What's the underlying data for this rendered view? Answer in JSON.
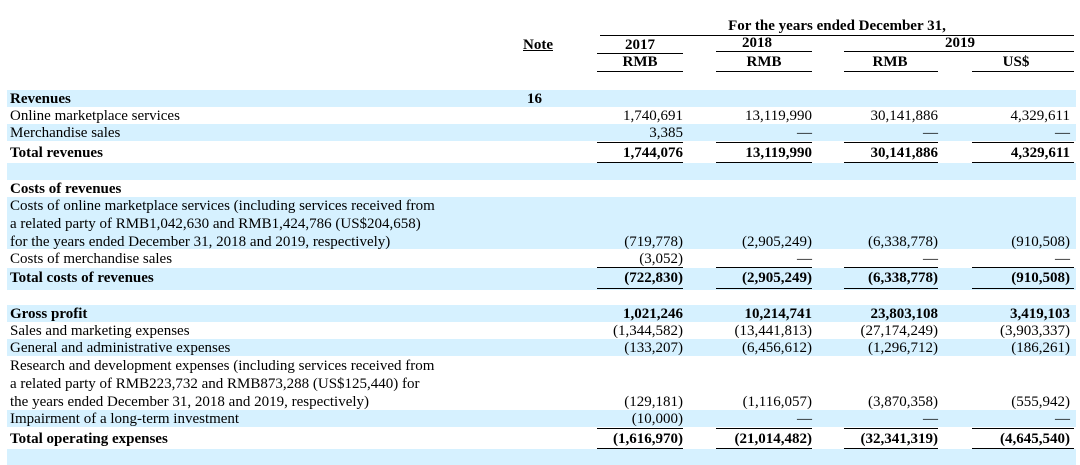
{
  "header": {
    "period_title": "For the years ended December 31,",
    "note": "Note",
    "years": [
      "2017",
      "2018",
      "2019"
    ],
    "currencies": [
      "RMB",
      "RMB",
      "RMB",
      "US$"
    ]
  },
  "rows": {
    "revenues": {
      "label": "Revenues",
      "note": "16"
    },
    "online": {
      "label": "Online marketplace services",
      "values": [
        "1,740,691",
        "13,119,990",
        "30,141,886",
        "4,329,611"
      ]
    },
    "merch": {
      "label": "Merchandise sales",
      "values": [
        "3,385",
        "—",
        "—",
        "—"
      ]
    },
    "total_rev": {
      "label": "Total revenues",
      "values": [
        "1,744,076",
        "13,119,990",
        "30,141,886",
        "4,329,611"
      ]
    },
    "cost_head": {
      "label": "Costs of revenues"
    },
    "cost_online_1": {
      "label": "Costs of online marketplace services (including services received from"
    },
    "cost_online_2": {
      "label": "a related party of RMB1,042,630 and RMB1,424,786 (US$204,658)"
    },
    "cost_online_3": {
      "label": "for the years ended December 31, 2018 and 2019, respectively)",
      "values": [
        "(719,778)",
        "(2,905,249)",
        "(6,338,778)",
        "(910,508)"
      ]
    },
    "cost_merch": {
      "label": "Costs of merchandise sales",
      "values": [
        "(3,052)",
        "—",
        "—",
        "—"
      ]
    },
    "total_cost": {
      "label": "Total costs of revenues",
      "values": [
        "(722,830)",
        "(2,905,249)",
        "(6,338,778)",
        "(910,508)"
      ]
    },
    "gross": {
      "label": "Gross profit",
      "values": [
        "1,021,246",
        "10,214,741",
        "23,803,108",
        "3,419,103"
      ]
    },
    "sales": {
      "label": "Sales and marketing expenses",
      "values": [
        "(1,344,582)",
        "(13,441,813)",
        "(27,174,249)",
        "(3,903,337)"
      ]
    },
    "ga": {
      "label": "General and administrative expenses",
      "values": [
        "(133,207)",
        "(6,456,612)",
        "(1,296,712)",
        "(186,261)"
      ]
    },
    "rd_1": {
      "label": "Research and development expenses (including services received from"
    },
    "rd_2": {
      "label": "a related party of RMB223,732 and RMB873,288 (US$125,440) for"
    },
    "rd_3": {
      "label": "the years ended December 31, 2018 and 2019, respectively)",
      "values": [
        "(129,181)",
        "(1,116,057)",
        "(3,870,358)",
        "(555,942)"
      ]
    },
    "impair": {
      "label": "Impairment of a long-term investment",
      "values": [
        "(10,000)",
        "—",
        "—",
        "—"
      ]
    },
    "total_opex": {
      "label": "Total operating expenses",
      "values": [
        "(1,616,970)",
        "(21,014,482)",
        "(32,341,319)",
        "(4,645,540)"
      ]
    }
  }
}
